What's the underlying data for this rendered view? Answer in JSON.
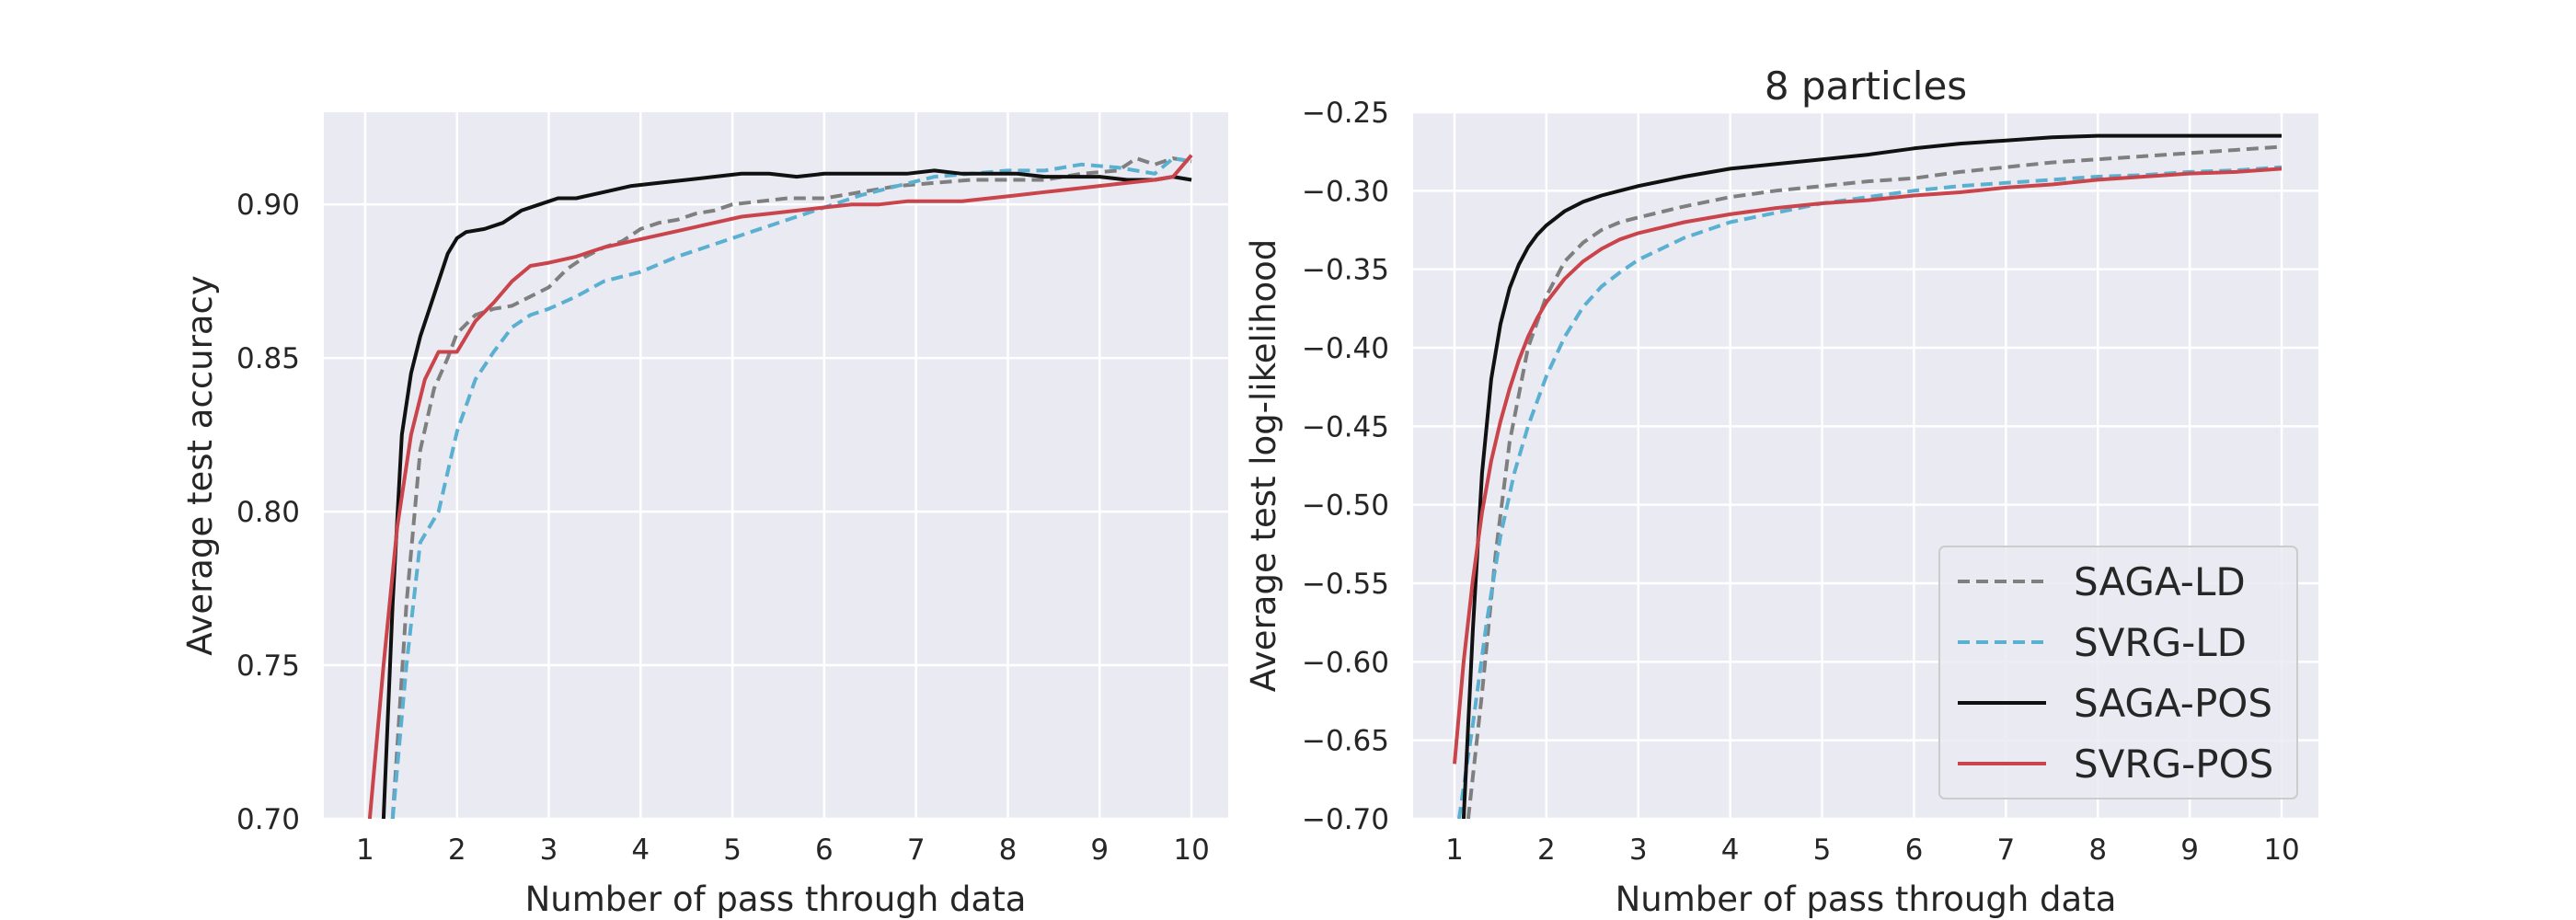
{
  "colors": {
    "plot_bg": "#EAEAF2",
    "grid": "#FFFFFF",
    "SAGA-LD": "#7F7F7F",
    "SVRG-LD": "#5AB0D0",
    "SAGA-POS": "#111111",
    "SVRG-POS": "#C9444B"
  },
  "chart_data": [
    {
      "type": "line",
      "title": "",
      "xlabel": "Number of pass through data",
      "ylabel": "Average test accuracy",
      "xlim": [
        0.55,
        10.4
      ],
      "ylim": [
        0.7,
        0.93
      ],
      "xticks": [
        1,
        2,
        3,
        4,
        5,
        6,
        7,
        8,
        9,
        10
      ],
      "xtick_labels": [
        "1",
        "2",
        "3",
        "4",
        "5",
        "6",
        "7",
        "8",
        "9",
        "10"
      ],
      "yticks": [
        0.7,
        0.75,
        0.8,
        0.85,
        0.9
      ],
      "ytick_labels": [
        "0.70",
        "0.75",
        "0.80",
        "0.85",
        "0.90"
      ],
      "grid": true,
      "series": [
        {
          "name": "SAGA-LD",
          "style": "dashed",
          "x": [
            1.3,
            1.45,
            1.6,
            1.75,
            1.9,
            2.0,
            2.2,
            2.4,
            2.6,
            2.8,
            3.0,
            3.2,
            3.4,
            3.6,
            3.8,
            4.0,
            4.2,
            4.4,
            4.6,
            4.8,
            5.0,
            5.3,
            5.6,
            6.0,
            6.4,
            6.8,
            7.2,
            7.6,
            8.0,
            8.4,
            8.8,
            9.2,
            9.4,
            9.6,
            9.8,
            10.0
          ],
          "y": [
            0.7,
            0.77,
            0.82,
            0.84,
            0.85,
            0.858,
            0.864,
            0.866,
            0.867,
            0.87,
            0.873,
            0.879,
            0.883,
            0.886,
            0.888,
            0.892,
            0.894,
            0.895,
            0.897,
            0.898,
            0.9,
            0.901,
            0.902,
            0.902,
            0.904,
            0.906,
            0.907,
            0.908,
            0.908,
            0.908,
            0.91,
            0.911,
            0.915,
            0.913,
            0.915,
            0.914
          ]
        },
        {
          "name": "SVRG-LD",
          "style": "dashed",
          "x": [
            1.3,
            1.45,
            1.6,
            1.8,
            2.0,
            2.2,
            2.4,
            2.6,
            2.8,
            3.0,
            3.3,
            3.6,
            4.0,
            4.4,
            4.8,
            5.2,
            5.6,
            6.0,
            6.4,
            6.8,
            7.2,
            7.6,
            8.0,
            8.4,
            8.8,
            9.2,
            9.6,
            9.8,
            10.0
          ],
          "y": [
            0.7,
            0.75,
            0.79,
            0.8,
            0.826,
            0.843,
            0.852,
            0.86,
            0.864,
            0.866,
            0.87,
            0.875,
            0.878,
            0.883,
            0.887,
            0.891,
            0.895,
            0.899,
            0.903,
            0.906,
            0.909,
            0.91,
            0.911,
            0.911,
            0.913,
            0.912,
            0.91,
            0.915,
            0.914
          ]
        },
        {
          "name": "SAGA-POS",
          "style": "solid",
          "x": [
            1.2,
            1.3,
            1.4,
            1.5,
            1.6,
            1.7,
            1.8,
            1.9,
            2.0,
            2.1,
            2.3,
            2.5,
            2.7,
            2.9,
            3.1,
            3.3,
            3.6,
            3.9,
            4.2,
            4.5,
            4.8,
            5.1,
            5.4,
            5.7,
            6.0,
            6.3,
            6.6,
            6.9,
            7.2,
            7.5,
            7.8,
            8.1,
            8.4,
            8.7,
            9.0,
            9.3,
            9.6,
            9.8,
            10.0
          ],
          "y": [
            0.7,
            0.77,
            0.825,
            0.845,
            0.857,
            0.866,
            0.875,
            0.884,
            0.889,
            0.891,
            0.892,
            0.894,
            0.898,
            0.9,
            0.902,
            0.902,
            0.904,
            0.906,
            0.907,
            0.908,
            0.909,
            0.91,
            0.91,
            0.909,
            0.91,
            0.91,
            0.91,
            0.91,
            0.911,
            0.91,
            0.91,
            0.91,
            0.909,
            0.909,
            0.909,
            0.908,
            0.908,
            0.909,
            0.908
          ]
        },
        {
          "name": "SVRG-POS",
          "style": "solid",
          "x": [
            1.05,
            1.2,
            1.35,
            1.5,
            1.65,
            1.8,
            2.0,
            2.2,
            2.4,
            2.6,
            2.8,
            3.0,
            3.3,
            3.6,
            3.9,
            4.2,
            4.5,
            4.8,
            5.1,
            5.4,
            5.7,
            6.0,
            6.3,
            6.6,
            6.9,
            7.2,
            7.5,
            7.8,
            8.1,
            8.4,
            8.7,
            9.0,
            9.3,
            9.6,
            9.8,
            10.0
          ],
          "y": [
            0.7,
            0.75,
            0.795,
            0.825,
            0.843,
            0.852,
            0.852,
            0.862,
            0.868,
            0.875,
            0.88,
            0.881,
            0.883,
            0.886,
            0.888,
            0.89,
            0.892,
            0.894,
            0.896,
            0.897,
            0.898,
            0.899,
            0.9,
            0.9,
            0.901,
            0.901,
            0.901,
            0.902,
            0.903,
            0.904,
            0.905,
            0.906,
            0.907,
            0.908,
            0.909,
            0.916
          ]
        }
      ]
    },
    {
      "type": "line",
      "title": "8 particles",
      "xlabel": "Number of pass through data",
      "ylabel": "Average test log-likelihood",
      "xlim": [
        0.55,
        10.4
      ],
      "ylim": [
        -0.7,
        -0.25
      ],
      "xticks": [
        1,
        2,
        3,
        4,
        5,
        6,
        7,
        8,
        9,
        10
      ],
      "xtick_labels": [
        "1",
        "2",
        "3",
        "4",
        "5",
        "6",
        "7",
        "8",
        "9",
        "10"
      ],
      "yticks": [
        -0.7,
        -0.65,
        -0.6,
        -0.55,
        -0.5,
        -0.45,
        -0.4,
        -0.35,
        -0.3,
        -0.25
      ],
      "ytick_labels": [
        "−0.70",
        "−0.65",
        "−0.60",
        "−0.55",
        "−0.50",
        "−0.45",
        "−0.40",
        "−0.35",
        "−0.30",
        "−0.25"
      ],
      "grid": true,
      "legend": {
        "position": "bottom-right",
        "entries": [
          "SAGA-LD",
          "SVRG-LD",
          "SAGA-POS",
          "SVRG-POS"
        ]
      },
      "series": [
        {
          "name": "SAGA-LD",
          "style": "dashed",
          "x": [
            1.15,
            1.3,
            1.45,
            1.6,
            1.8,
            2.0,
            2.2,
            2.4,
            2.6,
            2.8,
            3.0,
            3.5,
            4.0,
            4.5,
            5.0,
            5.5,
            6.0,
            6.5,
            7.0,
            7.5,
            8.0,
            8.5,
            9.0,
            9.5,
            10.0
          ],
          "y": [
            -0.7,
            -0.62,
            -0.53,
            -0.46,
            -0.4,
            -0.367,
            -0.345,
            -0.333,
            -0.325,
            -0.32,
            -0.317,
            -0.31,
            -0.304,
            -0.3,
            -0.297,
            -0.294,
            -0.292,
            -0.288,
            -0.285,
            -0.282,
            -0.28,
            -0.278,
            -0.276,
            -0.274,
            -0.272
          ]
        },
        {
          "name": "SVRG-LD",
          "style": "dashed",
          "x": [
            1.05,
            1.2,
            1.35,
            1.5,
            1.65,
            1.8,
            2.0,
            2.2,
            2.4,
            2.6,
            2.8,
            3.0,
            3.5,
            4.0,
            4.5,
            5.0,
            5.5,
            6.0,
            6.5,
            7.0,
            7.5,
            8.0,
            8.5,
            9.0,
            9.5,
            10.0
          ],
          "y": [
            -0.7,
            -0.64,
            -0.575,
            -0.52,
            -0.48,
            -0.45,
            -0.418,
            -0.393,
            -0.374,
            -0.361,
            -0.352,
            -0.344,
            -0.33,
            -0.32,
            -0.314,
            -0.308,
            -0.304,
            -0.3,
            -0.297,
            -0.295,
            -0.293,
            -0.291,
            -0.29,
            -0.288,
            -0.287,
            -0.285
          ]
        },
        {
          "name": "SAGA-POS",
          "style": "solid",
          "x": [
            1.1,
            1.2,
            1.3,
            1.4,
            1.5,
            1.6,
            1.7,
            1.8,
            1.9,
            2.0,
            2.2,
            2.4,
            2.6,
            2.8,
            3.0,
            3.5,
            4.0,
            4.5,
            5.0,
            5.5,
            6.0,
            6.5,
            7.0,
            7.5,
            8.0,
            8.5,
            9.0,
            9.5,
            10.0
          ],
          "y": [
            -0.7,
            -0.58,
            -0.48,
            -0.42,
            -0.385,
            -0.362,
            -0.347,
            -0.336,
            -0.328,
            -0.322,
            -0.313,
            -0.307,
            -0.303,
            -0.3,
            -0.297,
            -0.291,
            -0.286,
            -0.283,
            -0.28,
            -0.277,
            -0.273,
            -0.27,
            -0.268,
            -0.266,
            -0.265,
            -0.265,
            -0.265,
            -0.265,
            -0.265
          ]
        },
        {
          "name": "SVRG-POS",
          "style": "solid",
          "x": [
            1.0,
            1.1,
            1.2,
            1.3,
            1.4,
            1.5,
            1.6,
            1.7,
            1.8,
            1.9,
            2.0,
            2.2,
            2.4,
            2.6,
            2.8,
            3.0,
            3.5,
            4.0,
            4.5,
            5.0,
            5.5,
            6.0,
            6.5,
            7.0,
            7.5,
            8.0,
            8.5,
            9.0,
            9.5,
            10.0
          ],
          "y": [
            -0.665,
            -0.6,
            -0.548,
            -0.505,
            -0.472,
            -0.447,
            -0.426,
            -0.408,
            -0.393,
            -0.381,
            -0.371,
            -0.356,
            -0.345,
            -0.337,
            -0.331,
            -0.327,
            -0.32,
            -0.315,
            -0.311,
            -0.308,
            -0.306,
            -0.303,
            -0.301,
            -0.298,
            -0.296,
            -0.293,
            -0.291,
            -0.289,
            -0.288,
            -0.286
          ]
        }
      ]
    }
  ]
}
